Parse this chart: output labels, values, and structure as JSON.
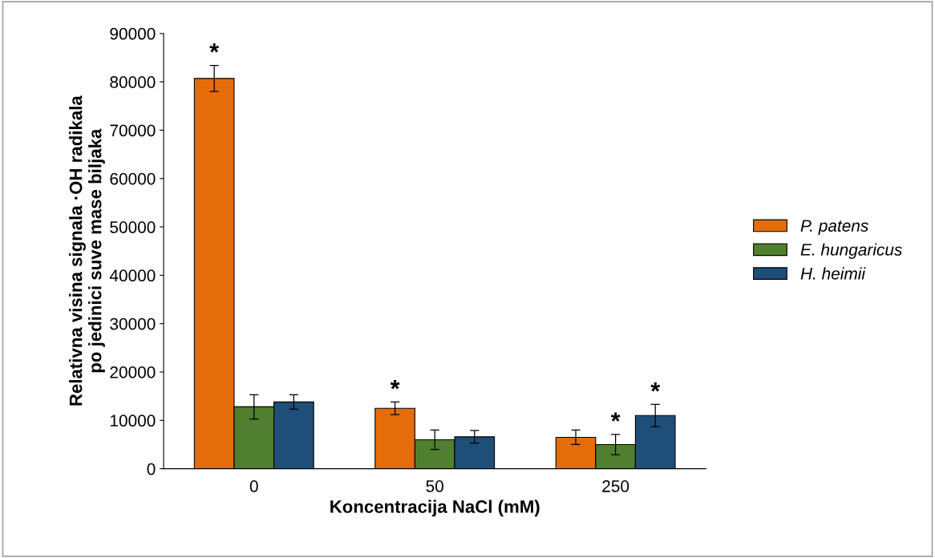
{
  "chart_data": {
    "type": "bar",
    "xlabel": "Koncentracija NaCl (mM)",
    "ylabel": "Relativna visina signala ·OH radikala\npo jedinici suve mase biljaka",
    "categories": [
      "0",
      "50",
      "250"
    ],
    "series": [
      {
        "name": "P. patens",
        "color": "#e46c0a",
        "values": [
          80700,
          12500,
          6500
        ],
        "errors": [
          2700,
          1300,
          1500
        ],
        "value_labels": [
          "*",
          "*",
          null
        ]
      },
      {
        "name": "E. hungaricus",
        "color": "#4f7f2f",
        "values": [
          12800,
          6000,
          5000
        ],
        "errors": [
          2500,
          2000,
          2100
        ],
        "value_labels": [
          null,
          null,
          "*"
        ]
      },
      {
        "name": "H. heimii",
        "color": "#1f4e79",
        "values": [
          13800,
          6600,
          11000
        ],
        "errors": [
          1500,
          1300,
          2300
        ],
        "value_labels": [
          null,
          null,
          "*"
        ]
      }
    ],
    "ylim": [
      0,
      90000
    ],
    "yticks": [
      0,
      10000,
      20000,
      30000,
      40000,
      50000,
      60000,
      70000,
      80000,
      90000
    ],
    "grid": false,
    "legend": "right"
  }
}
